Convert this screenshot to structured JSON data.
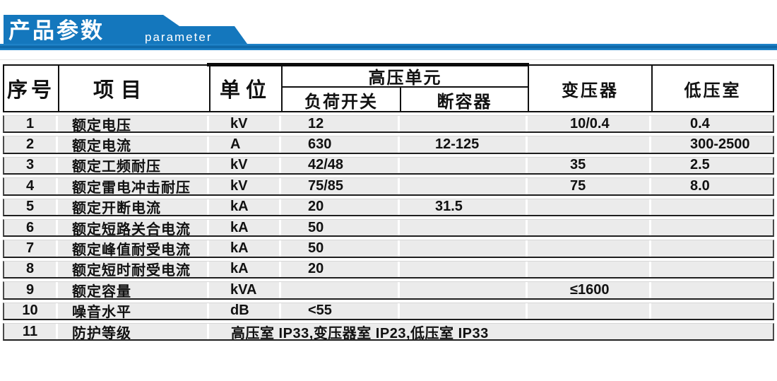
{
  "banner": {
    "title": "产品参数",
    "subtitle": "parameter",
    "accent_color": "#1477bd",
    "text_color": "#ffffff"
  },
  "table": {
    "colors": {
      "row_background": "#ebebeb",
      "row_separator": "#1f1f1f",
      "header_border": "#101010",
      "column_gap": "#ffffff"
    },
    "headers": {
      "col_no": "序号",
      "col_item": "项目",
      "col_unit": "单位",
      "col_hv_unit": "高压单元",
      "col_load_switch": "负荷开关",
      "col_fuse": "断容器",
      "col_transformer": "变压器",
      "col_lv_room": "低压室"
    },
    "rows": [
      {
        "no": "1",
        "item": "额定电压",
        "unit": "kV",
        "load_switch": "12",
        "fuse": "",
        "transformer": "10/0.4",
        "lv": "0.4"
      },
      {
        "no": "2",
        "item": "额定电流",
        "unit": "A",
        "load_switch": "630",
        "fuse": "12-125",
        "transformer": "",
        "lv": "300-2500"
      },
      {
        "no": "3",
        "item": "额定工频耐压",
        "unit": "kV",
        "load_switch": "42/48",
        "fuse": "",
        "transformer": "35",
        "lv": "2.5"
      },
      {
        "no": "4",
        "item": "额定雷电冲击耐压",
        "unit": "kV",
        "load_switch": "75/85",
        "fuse": "",
        "transformer": "75",
        "lv": "8.0"
      },
      {
        "no": "5",
        "item": "额定开断电流",
        "unit": "kA",
        "load_switch": "20",
        "fuse": "31.5",
        "transformer": "",
        "lv": ""
      },
      {
        "no": "6",
        "item": "额定短路关合电流",
        "unit": "kA",
        "load_switch": "50",
        "fuse": "",
        "transformer": "",
        "lv": ""
      },
      {
        "no": "7",
        "item": "额定峰值耐受电流",
        "unit": "kA",
        "load_switch": "50",
        "fuse": "",
        "transformer": "",
        "lv": ""
      },
      {
        "no": "8",
        "item": "额定短时耐受电流",
        "unit": "kA",
        "load_switch": "20",
        "fuse": "",
        "transformer": "",
        "lv": ""
      },
      {
        "no": "9",
        "item": "额定容量",
        "unit": "kVA",
        "load_switch": "",
        "fuse": "",
        "transformer": "≤1600",
        "lv": ""
      },
      {
        "no": "10",
        "item": "噪音水平",
        "unit": "dB",
        "load_switch": "<55",
        "fuse": "",
        "transformer": "",
        "lv": ""
      },
      {
        "no": "11",
        "item": "防护等级",
        "merged": "高压室 IP33,变压器室 IP23,低压室 IP33"
      }
    ]
  }
}
